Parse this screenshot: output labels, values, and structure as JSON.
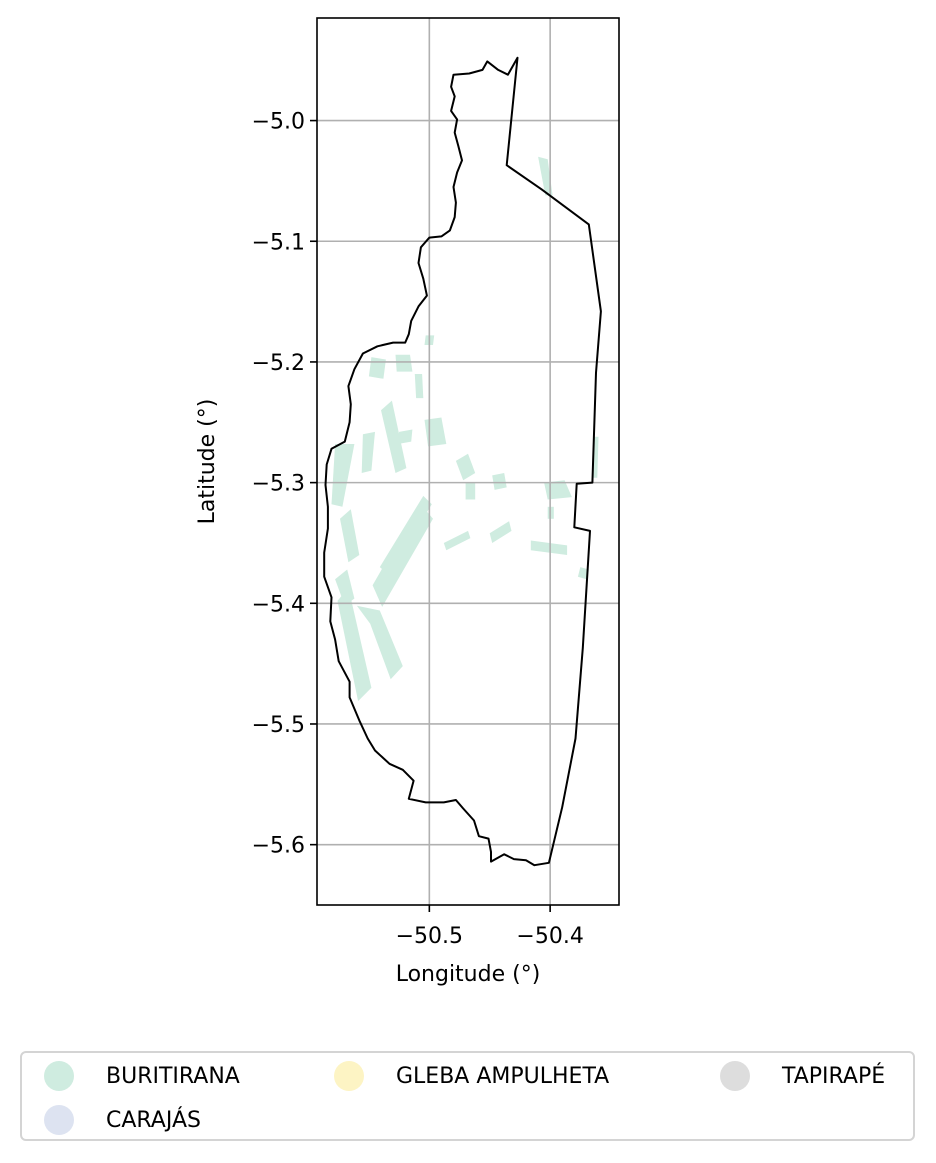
{
  "chart_data": {
    "type": "map",
    "xlabel": "Longitude (°)",
    "ylabel": "Latitude (°)",
    "xlim": [
      -50.593,
      -50.343
    ],
    "ylim": [
      -5.65,
      -4.915
    ],
    "xticks": [
      -50.5,
      -50.4
    ],
    "yticks": [
      -5.0,
      -5.1,
      -5.2,
      -5.3,
      -5.4,
      -5.5,
      -5.6
    ],
    "grid": true,
    "legend_position": "bottom",
    "boundary_outline": [
      [
        -50.427,
        -4.948
      ],
      [
        -50.435,
        -4.962
      ],
      [
        -50.443,
        -4.958
      ],
      [
        -50.452,
        -4.951
      ],
      [
        -50.456,
        -4.958
      ],
      [
        -50.467,
        -4.961
      ],
      [
        -50.48,
        -4.962
      ],
      [
        -50.482,
        -4.972
      ],
      [
        -50.479,
        -4.98
      ],
      [
        -50.482,
        -4.992
      ],
      [
        -50.477,
        -4.999
      ],
      [
        -50.479,
        -5.01
      ],
      [
        -50.476,
        -5.021
      ],
      [
        -50.473,
        -5.033
      ],
      [
        -50.477,
        -5.043
      ],
      [
        -50.48,
        -5.055
      ],
      [
        -50.478,
        -5.068
      ],
      [
        -50.479,
        -5.08
      ],
      [
        -50.483,
        -5.091
      ],
      [
        -50.49,
        -5.096
      ],
      [
        -50.5,
        -5.097
      ],
      [
        -50.507,
        -5.105
      ],
      [
        -50.509,
        -5.118
      ],
      [
        -50.505,
        -5.131
      ],
      [
        -50.502,
        -5.145
      ],
      [
        -50.509,
        -5.154
      ],
      [
        -50.515,
        -5.166
      ],
      [
        -50.517,
        -5.177
      ],
      [
        -50.52,
        -5.184
      ],
      [
        -50.53,
        -5.184
      ],
      [
        -50.543,
        -5.187
      ],
      [
        -50.555,
        -5.193
      ],
      [
        -50.562,
        -5.206
      ],
      [
        -50.567,
        -5.22
      ],
      [
        -50.565,
        -5.235
      ],
      [
        -50.566,
        -5.25
      ],
      [
        -50.57,
        -5.266
      ],
      [
        -50.581,
        -5.272
      ],
      [
        -50.585,
        -5.285
      ],
      [
        -50.586,
        -5.302
      ],
      [
        -50.584,
        -5.32
      ],
      [
        -50.584,
        -5.338
      ],
      [
        -50.587,
        -5.358
      ],
      [
        -50.587,
        -5.378
      ],
      [
        -50.581,
        -5.395
      ],
      [
        -50.582,
        -5.415
      ],
      [
        -50.578,
        -5.43
      ],
      [
        -50.575,
        -5.448
      ],
      [
        -50.566,
        -5.465
      ],
      [
        -50.566,
        -5.478
      ],
      [
        -50.558,
        -5.497
      ],
      [
        -50.551,
        -5.512
      ],
      [
        -50.545,
        -5.522
      ],
      [
        -50.533,
        -5.533
      ],
      [
        -50.522,
        -5.538
      ],
      [
        -50.513,
        -5.547
      ],
      [
        -50.517,
        -5.562
      ],
      [
        -50.503,
        -5.565
      ],
      [
        -50.488,
        -5.565
      ],
      [
        -50.478,
        -5.563
      ],
      [
        -50.472,
        -5.57
      ],
      [
        -50.463,
        -5.58
      ],
      [
        -50.459,
        -5.593
      ],
      [
        -50.451,
        -5.595
      ],
      [
        -50.449,
        -5.606
      ],
      [
        -50.449,
        -5.614
      ],
      [
        -50.438,
        -5.608
      ],
      [
        -50.43,
        -5.612
      ],
      [
        -50.42,
        -5.613
      ],
      [
        -50.413,
        -5.617
      ],
      [
        -50.401,
        -5.615
      ],
      [
        -50.39,
        -5.569
      ],
      [
        -50.379,
        -5.512
      ],
      [
        -50.373,
        -5.437
      ],
      [
        -50.367,
        -5.34
      ],
      [
        -50.38,
        -5.337
      ],
      [
        -50.378,
        -5.301
      ],
      [
        -50.365,
        -5.3
      ],
      [
        -50.362,
        -5.209
      ],
      [
        -50.358,
        -5.158
      ],
      [
        -50.368,
        -5.086
      ],
      [
        -50.407,
        -5.057
      ],
      [
        -50.436,
        -5.037
      ],
      [
        -50.427,
        -4.948
      ]
    ],
    "series": [
      {
        "name": "BURITIRANA",
        "color": "#cfece0"
      },
      {
        "name": "CARAJÁS",
        "color": "#dde3f1"
      },
      {
        "name": "GLEBA AMPULHETA",
        "color": "#fdf4c4"
      },
      {
        "name": "TAPIRAPÉ",
        "color": "#dddddd"
      }
    ],
    "filled_regions": [
      {
        "series": "BURITIRANA",
        "polygon": [
          [
            -50.576,
            -5.398
          ],
          [
            -50.567,
            -5.387
          ],
          [
            -50.548,
            -5.47
          ],
          [
            -50.559,
            -5.481
          ]
        ]
      },
      {
        "series": "BURITIRANA",
        "polygon": [
          [
            -50.56,
            -5.402
          ],
          [
            -50.541,
            -5.406
          ],
          [
            -50.522,
            -5.452
          ],
          [
            -50.532,
            -5.463
          ],
          [
            -50.549,
            -5.417
          ]
        ]
      },
      {
        "series": "BURITIRANA",
        "polygon": [
          [
            -50.547,
            -5.385
          ],
          [
            -50.508,
            -5.317
          ],
          [
            -50.497,
            -5.33
          ],
          [
            -50.539,
            -5.403
          ]
        ]
      },
      {
        "series": "BURITIRANA",
        "polygon": [
          [
            -50.541,
            -5.37
          ],
          [
            -50.505,
            -5.311
          ],
          [
            -50.498,
            -5.318
          ],
          [
            -50.534,
            -5.376
          ]
        ]
      },
      {
        "series": "BURITIRANA",
        "polygon": [
          [
            -50.54,
            -5.24
          ],
          [
            -50.531,
            -5.232
          ],
          [
            -50.519,
            -5.288
          ],
          [
            -50.528,
            -5.292
          ]
        ]
      },
      {
        "series": "BURITIRANA",
        "polygon": [
          [
            -50.578,
            -5.268
          ],
          [
            -50.562,
            -5.268
          ],
          [
            -50.572,
            -5.32
          ],
          [
            -50.581,
            -5.318
          ]
        ]
      },
      {
        "series": "BURITIRANA",
        "polygon": [
          [
            -50.574,
            -5.33
          ],
          [
            -50.565,
            -5.322
          ],
          [
            -50.558,
            -5.36
          ],
          [
            -50.567,
            -5.366
          ]
        ]
      },
      {
        "series": "BURITIRANA",
        "polygon": [
          [
            -50.578,
            -5.38
          ],
          [
            -50.568,
            -5.372
          ],
          [
            -50.562,
            -5.396
          ],
          [
            -50.57,
            -5.402
          ]
        ]
      },
      {
        "series": "BURITIRANA",
        "polygon": [
          [
            -50.555,
            -5.26
          ],
          [
            -50.545,
            -5.258
          ],
          [
            -50.548,
            -5.29
          ],
          [
            -50.556,
            -5.292
          ]
        ]
      },
      {
        "series": "BURITIRANA",
        "polygon": [
          [
            -50.528,
            -5.194
          ],
          [
            -50.516,
            -5.194
          ],
          [
            -50.514,
            -5.208
          ],
          [
            -50.527,
            -5.208
          ]
        ]
      },
      {
        "series": "BURITIRANA",
        "polygon": [
          [
            -50.548,
            -5.196
          ],
          [
            -50.536,
            -5.198
          ],
          [
            -50.538,
            -5.214
          ],
          [
            -50.55,
            -5.212
          ]
        ]
      },
      {
        "series": "BURITIRANA",
        "polygon": [
          [
            -50.512,
            -5.21
          ],
          [
            -50.506,
            -5.21
          ],
          [
            -50.505,
            -5.23
          ],
          [
            -50.511,
            -5.23
          ]
        ]
      },
      {
        "series": "BURITIRANA",
        "polygon": [
          [
            -50.503,
            -5.178
          ],
          [
            -50.496,
            -5.178
          ],
          [
            -50.497,
            -5.186
          ],
          [
            -50.504,
            -5.186
          ]
        ]
      },
      {
        "series": "BURITIRANA",
        "polygon": [
          [
            -50.504,
            -5.248
          ],
          [
            -50.49,
            -5.246
          ],
          [
            -50.486,
            -5.268
          ],
          [
            -50.501,
            -5.27
          ]
        ]
      },
      {
        "series": "BURITIRANA",
        "polygon": [
          [
            -50.525,
            -5.258
          ],
          [
            -50.514,
            -5.256
          ],
          [
            -50.515,
            -5.266
          ],
          [
            -50.526,
            -5.268
          ]
        ]
      },
      {
        "series": "BURITIRANA",
        "polygon": [
          [
            -50.478,
            -5.282
          ],
          [
            -50.468,
            -5.276
          ],
          [
            -50.462,
            -5.292
          ],
          [
            -50.472,
            -5.298
          ]
        ]
      },
      {
        "series": "BURITIRANA",
        "polygon": [
          [
            -50.448,
            -5.294
          ],
          [
            -50.438,
            -5.292
          ],
          [
            -50.436,
            -5.304
          ],
          [
            -50.446,
            -5.306
          ]
        ]
      },
      {
        "series": "BURITIRANA",
        "polygon": [
          [
            -50.47,
            -5.3
          ],
          [
            -50.462,
            -5.3
          ],
          [
            -50.462,
            -5.314
          ],
          [
            -50.47,
            -5.314
          ]
        ]
      },
      {
        "series": "BURITIRANA",
        "polygon": [
          [
            -50.488,
            -5.35
          ],
          [
            -50.468,
            -5.34
          ],
          [
            -50.466,
            -5.346
          ],
          [
            -50.486,
            -5.356
          ]
        ]
      },
      {
        "series": "BURITIRANA",
        "polygon": [
          [
            -50.45,
            -5.342
          ],
          [
            -50.434,
            -5.332
          ],
          [
            -50.432,
            -5.34
          ],
          [
            -50.448,
            -5.35
          ]
        ]
      },
      {
        "series": "BURITIRANA",
        "polygon": [
          [
            -50.405,
            -5.3
          ],
          [
            -50.388,
            -5.298
          ],
          [
            -50.382,
            -5.312
          ],
          [
            -50.402,
            -5.314
          ]
        ]
      },
      {
        "series": "BURITIRANA",
        "polygon": [
          [
            -50.416,
            -5.348
          ],
          [
            -50.386,
            -5.352
          ],
          [
            -50.386,
            -5.36
          ],
          [
            -50.416,
            -5.356
          ]
        ]
      },
      {
        "series": "BURITIRANA",
        "polygon": [
          [
            -50.375,
            -5.37
          ],
          [
            -50.368,
            -5.372
          ],
          [
            -50.37,
            -5.38
          ],
          [
            -50.377,
            -5.378
          ]
        ]
      },
      {
        "series": "BURITIRANA",
        "polygon": [
          [
            -50.41,
            -5.03
          ],
          [
            -50.402,
            -5.032
          ],
          [
            -50.398,
            -5.062
          ],
          [
            -50.404,
            -5.062
          ]
        ]
      },
      {
        "series": "BURITIRANA",
        "polygon": [
          [
            -50.364,
            -5.262
          ],
          [
            -50.36,
            -5.262
          ],
          [
            -50.361,
            -5.296
          ],
          [
            -50.365,
            -5.296
          ]
        ]
      },
      {
        "series": "BURITIRANA",
        "polygon": [
          [
            -50.402,
            -5.32
          ],
          [
            -50.397,
            -5.32
          ],
          [
            -50.397,
            -5.33
          ],
          [
            -50.402,
            -5.33
          ]
        ]
      }
    ]
  }
}
